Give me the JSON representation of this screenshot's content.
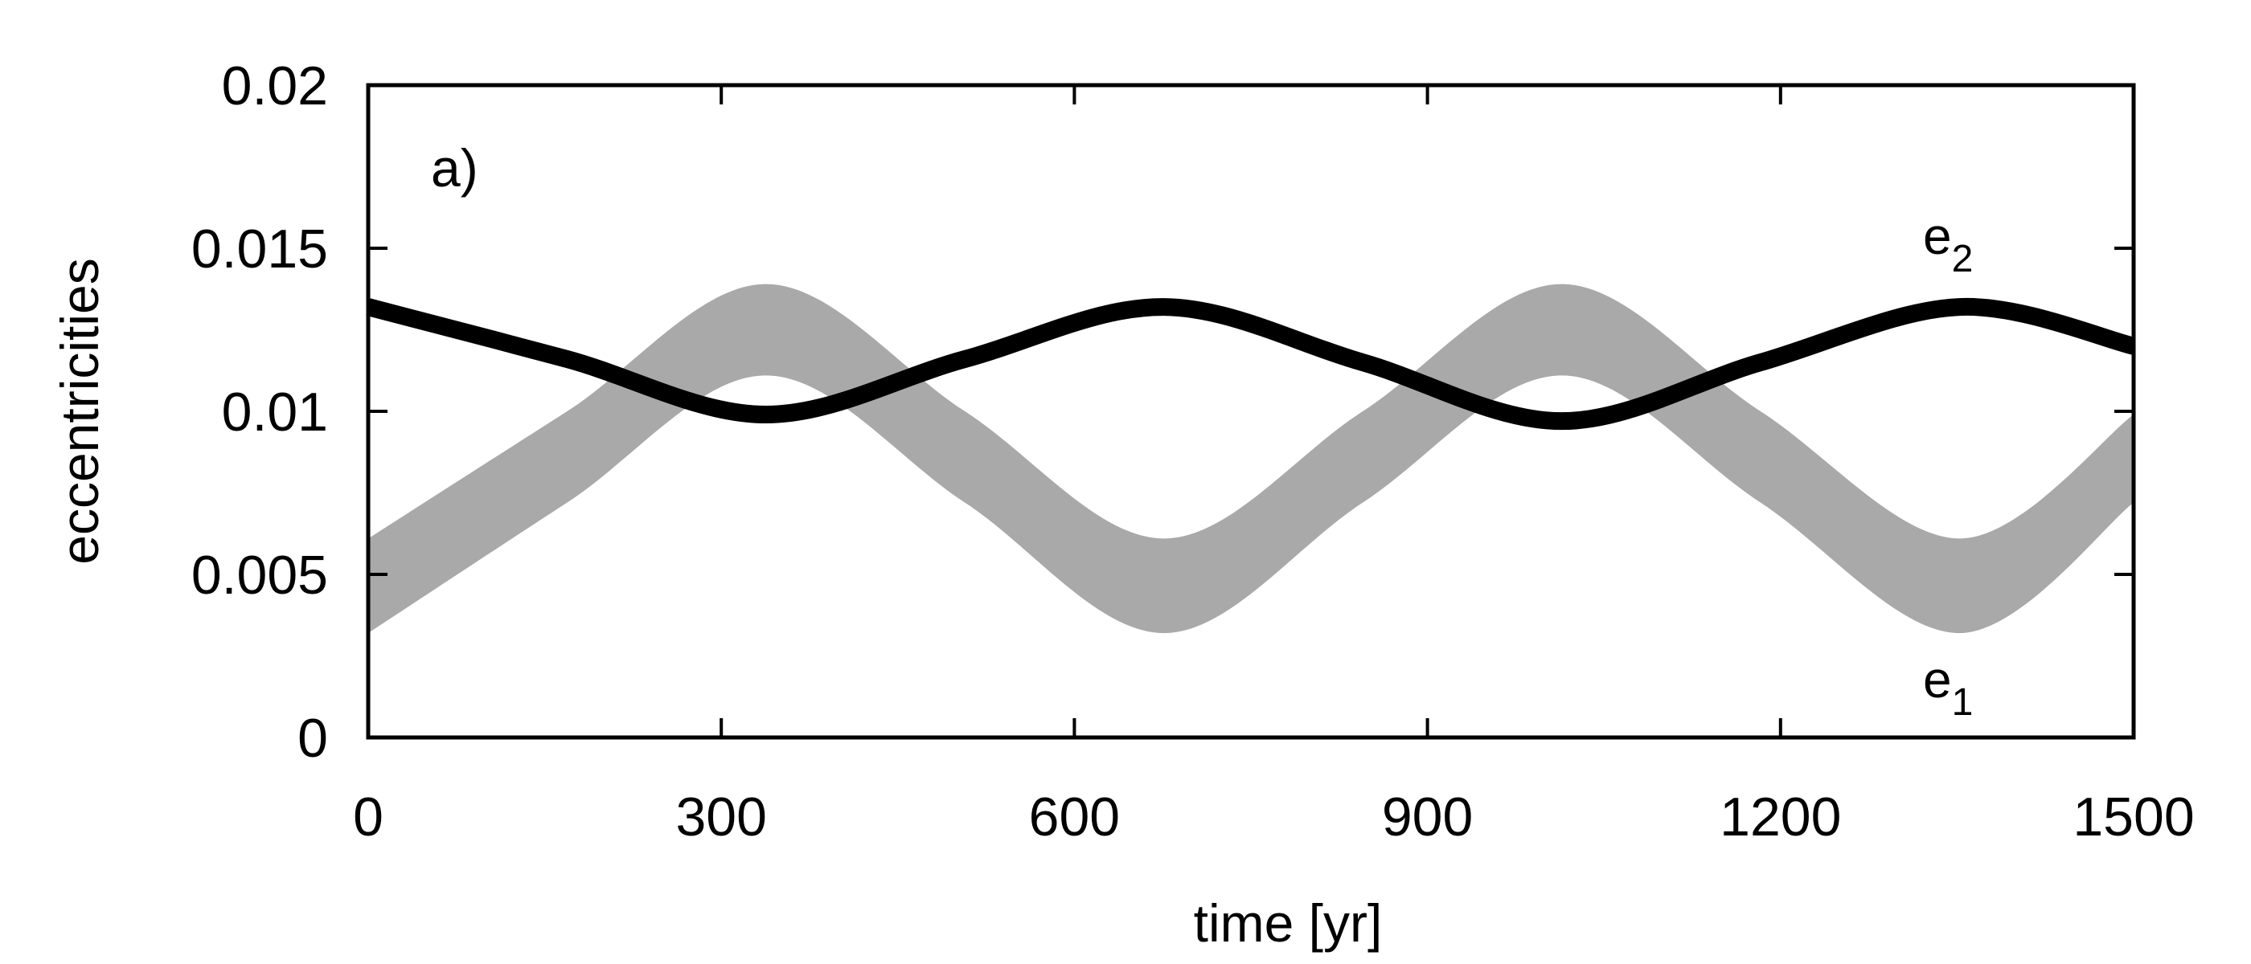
{
  "chart_data": {
    "type": "line",
    "panel_label": "a)",
    "xlabel": "time [yr]",
    "ylabel": "eccentricities",
    "xlim": [
      0,
      1500
    ],
    "ylim": [
      0,
      0.02
    ],
    "x_ticks": [
      "0",
      "300",
      "600",
      "900",
      "1200",
      "1500"
    ],
    "y_ticks": [
      "0",
      "0.005",
      "0.01",
      "0.015",
      "0.02"
    ],
    "grid": false,
    "series": [
      {
        "name": "e1",
        "style": "band",
        "color": "#a9a9a9",
        "x": [
          0,
          169,
          338,
          507,
          676,
          845,
          1014,
          1183,
          1352,
          1500
        ],
        "lower": [
          0.0032,
          0.0072,
          0.0111,
          0.0072,
          0.0032,
          0.0072,
          0.0111,
          0.0072,
          0.0032,
          0.0072
        ],
        "upper": [
          0.0061,
          0.01,
          0.0139,
          0.01,
          0.0061,
          0.01,
          0.0139,
          0.01,
          0.0061,
          0.0099
        ]
      },
      {
        "name": "e2",
        "style": "line",
        "color": "#000000",
        "x": [
          0,
          169,
          338,
          507,
          676,
          845,
          1014,
          1183,
          1352,
          1500
        ],
        "values": [
          0.0132,
          0.0116,
          0.0099,
          0.0116,
          0.0132,
          0.0115,
          0.0097,
          0.0115,
          0.0132,
          0.012
        ]
      }
    ],
    "series_labels": [
      {
        "base": "e",
        "sub": "2"
      },
      {
        "base": "e",
        "sub": "1"
      }
    ]
  }
}
